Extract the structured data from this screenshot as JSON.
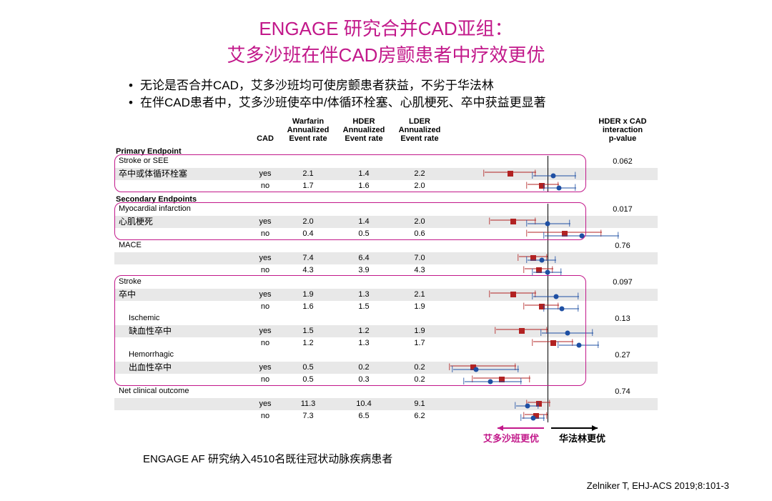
{
  "title": {
    "line1": "ENGAGE 研究合并CAD亚组：",
    "line2": "艾多沙班在伴CAD房颤患者中疗效更优",
    "color": "#c2188a"
  },
  "bullets": [
    "无论是否合并CAD，艾多沙班均可使房颤患者获益，不劣于华法林",
    "在伴CAD患者中，艾多沙班使卒中/体循环栓塞、心肌梗死、卒中获益更显著"
  ],
  "bullet_color": "#1a1a1a",
  "headers": {
    "cad": "CAD",
    "warf": [
      "Warfarin",
      "Annualized",
      "Event rate"
    ],
    "hder": [
      "HDER",
      "Annualized",
      "Event rate"
    ],
    "lder": [
      "LDER",
      "Annualized",
      "Event rate"
    ],
    "p": [
      "HDER x CAD",
      "interaction",
      "p-value"
    ]
  },
  "sections": {
    "primary": "Primary Endpoint",
    "secondary": "Secondary Endpoints"
  },
  "forest": {
    "axis_pos_pct": 70,
    "hder_color": "#b22222",
    "lder_color": "#1e4fa3",
    "unity_color": "#000000"
  },
  "endpoints": [
    {
      "label_en": "Stroke or SEE",
      "label_cn": "卒中或体循环栓塞",
      "indent": 0,
      "p": "0.062",
      "box": true,
      "rows": [
        {
          "cad": "yes",
          "w": "2.1",
          "h": "1.4",
          "l": "2.2",
          "hd": {
            "pt": 44,
            "lo": 26,
            "hi": 62
          },
          "ld": {
            "pt": 74,
            "lo": 60,
            "hi": 90
          }
        },
        {
          "cad": "no",
          "w": "1.7",
          "h": "1.6",
          "l": "2.0",
          "hd": {
            "pt": 66,
            "lo": 56,
            "hi": 78
          },
          "ld": {
            "pt": 78,
            "lo": 68,
            "hi": 90
          }
        }
      ]
    },
    {
      "label_en": "Myocardial infarction",
      "label_cn": "心肌梗死",
      "indent": 0,
      "p": "0.017",
      "box": true,
      "rows": [
        {
          "cad": "yes",
          "w": "2.0",
          "h": "1.4",
          "l": "2.0",
          "hd": {
            "pt": 46,
            "lo": 30,
            "hi": 62
          },
          "ld": {
            "pt": 70,
            "lo": 56,
            "hi": 86
          }
        },
        {
          "cad": "no",
          "w": "0.4",
          "h": "0.5",
          "l": "0.6",
          "hd": {
            "pt": 82,
            "lo": 56,
            "hi": 108
          },
          "ld": {
            "pt": 94,
            "lo": 68,
            "hi": 120
          }
        }
      ]
    },
    {
      "label_en": "MACE",
      "label_cn": "",
      "indent": 0,
      "p": "0.76",
      "box": false,
      "rows": [
        {
          "cad": "yes",
          "w": "7.4",
          "h": "6.4",
          "l": "7.0",
          "hd": {
            "pt": 60,
            "lo": 50,
            "hi": 70
          },
          "ld": {
            "pt": 66,
            "lo": 56,
            "hi": 76
          }
        },
        {
          "cad": "no",
          "w": "4.3",
          "h": "3.9",
          "l": "4.3",
          "hd": {
            "pt": 64,
            "lo": 54,
            "hi": 74
          },
          "ld": {
            "pt": 70,
            "lo": 60,
            "hi": 80
          }
        }
      ]
    },
    {
      "label_en": "Stroke",
      "label_cn": "卒中",
      "indent": 0,
      "p": "0.097",
      "box": true,
      "box_span": 3,
      "rows": [
        {
          "cad": "yes",
          "w": "1.9",
          "h": "1.3",
          "l": "2.1",
          "hd": {
            "pt": 46,
            "lo": 30,
            "hi": 62
          },
          "ld": {
            "pt": 76,
            "lo": 60,
            "hi": 92
          }
        },
        {
          "cad": "no",
          "w": "1.6",
          "h": "1.5",
          "l": "1.9",
          "hd": {
            "pt": 66,
            "lo": 54,
            "hi": 78
          },
          "ld": {
            "pt": 80,
            "lo": 68,
            "hi": 92
          }
        }
      ]
    },
    {
      "label_en": "Ischemic",
      "label_cn": "缺血性卒中",
      "indent": 1,
      "p": "0.13",
      "box": false,
      "rows": [
        {
          "cad": "yes",
          "w": "1.5",
          "h": "1.2",
          "l": "1.9",
          "hd": {
            "pt": 52,
            "lo": 34,
            "hi": 70
          },
          "ld": {
            "pt": 84,
            "lo": 66,
            "hi": 102
          }
        },
        {
          "cad": "no",
          "w": "1.2",
          "h": "1.3",
          "l": "1.7",
          "hd": {
            "pt": 74,
            "lo": 60,
            "hi": 88
          },
          "ld": {
            "pt": 92,
            "lo": 78,
            "hi": 106
          }
        }
      ]
    },
    {
      "label_en": "Hemorrhagic",
      "label_cn": "出血性卒中",
      "indent": 1,
      "p": "0.27",
      "box": false,
      "rows": [
        {
          "cad": "yes",
          "w": "0.5",
          "h": "0.2",
          "l": "0.2",
          "hd": {
            "pt": 18,
            "lo": 2,
            "hi": 48
          },
          "ld": {
            "pt": 20,
            "lo": 4,
            "hi": 50
          }
        },
        {
          "cad": "no",
          "w": "0.5",
          "h": "0.3",
          "l": "0.2",
          "hd": {
            "pt": 38,
            "lo": 18,
            "hi": 58
          },
          "ld": {
            "pt": 30,
            "lo": 12,
            "hi": 52
          }
        }
      ]
    },
    {
      "label_en": "Net clinical outcome",
      "label_cn": "",
      "indent": 0,
      "p": "0.74",
      "box": false,
      "rows": [
        {
          "cad": "yes",
          "w": "11.3",
          "h": "10.4",
          "l": "9.1",
          "hd": {
            "pt": 64,
            "lo": 56,
            "hi": 72
          },
          "ld": {
            "pt": 56,
            "lo": 48,
            "hi": 64
          }
        },
        {
          "cad": "no",
          "w": "7.3",
          "h": "6.5",
          "l": "6.2",
          "hd": {
            "pt": 62,
            "lo": 54,
            "hi": 70
          },
          "ld": {
            "pt": 60,
            "lo": 52,
            "hi": 68
          }
        }
      ]
    }
  ],
  "arrows": {
    "left_label": "艾多沙班更优",
    "left_color": "#c2188a",
    "right_label": "华法林更优",
    "right_color": "#000000"
  },
  "footnote": "ENGAGE AF 研究纳入4510名既往冠状动脉疾病患者",
  "citation": "Zelniker T, EHJ-ACS 2019;8:101-3",
  "box_color": "#c2188a"
}
